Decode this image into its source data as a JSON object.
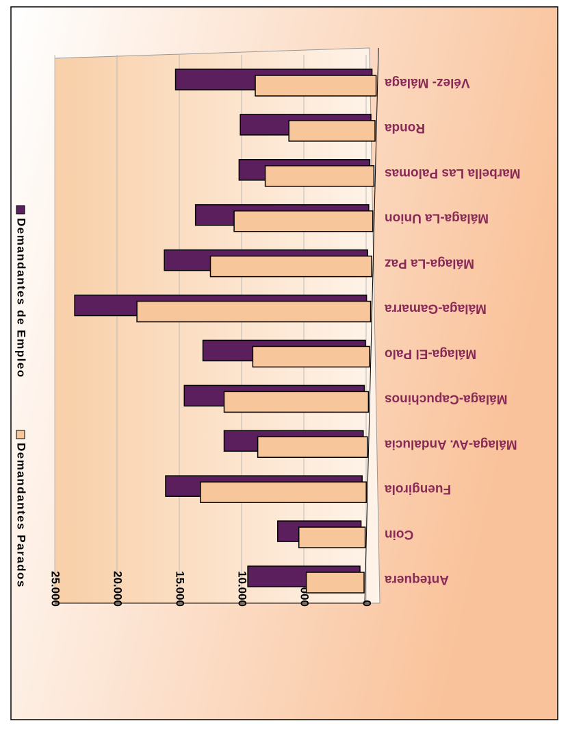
{
  "chart_data": {
    "type": "bar",
    "categories": [
      "Antequera",
      "Coin",
      "Fuengirola",
      "Málaga-Av. Andalucia",
      "Málaga-Capuchinos",
      "Málaga-El Palo",
      "Málaga-Gamarra",
      "Málaga-La Paz",
      "Málaga-La Union",
      "Marbella Las Palomas",
      "Ronda",
      "Vélez- Málaga"
    ],
    "series": [
      {
        "name": "Demandantes Parados",
        "color": "#f7c79b",
        "values": [
          4800,
          5400,
          13300,
          8700,
          11400,
          9100,
          18400,
          12500,
          10600,
          8100,
          6200,
          8900
        ]
      },
      {
        "name": "Demandantes de Empleo",
        "color": "#5b1f5e",
        "values": [
          9500,
          7100,
          16100,
          11400,
          14600,
          13100,
          23400,
          16200,
          13700,
          10200,
          10100,
          15300
        ]
      }
    ],
    "ylim": [
      0,
      25000
    ],
    "yticks": [
      0,
      {
        "value": 5000,
        "label": "5.000"
      },
      {
        "value": 10000,
        "label": "10.000"
      },
      {
        "value": 15000,
        "label": "15.000"
      },
      {
        "value": 20000,
        "label": "20.000"
      },
      {
        "value": 25000,
        "label": "25.000"
      }
    ],
    "grid": true
  }
}
